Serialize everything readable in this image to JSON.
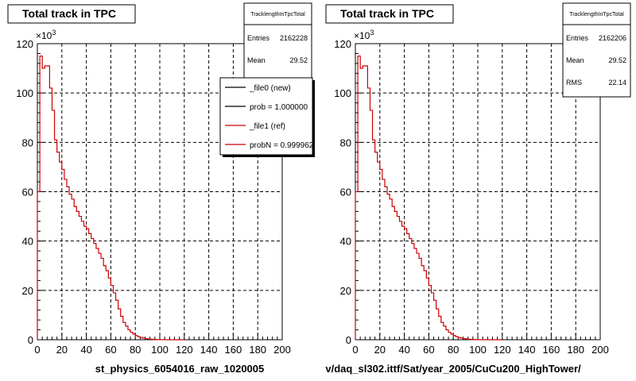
{
  "chart_data": [
    {
      "type": "line",
      "title": "Total track in TPC",
      "xlabel": "st_physics_6054016_raw_1020005",
      "ylabel": "",
      "xlim": [
        0,
        200
      ],
      "ylim": [
        0,
        120
      ],
      "y_multiplier": "×10",
      "y_multiplier_exp": "3",
      "x_ticks": [
        "0",
        "20",
        "40",
        "60",
        "80",
        "100",
        "120",
        "140",
        "160",
        "180",
        "200"
      ],
      "y_ticks": [
        "0",
        "20",
        "40",
        "60",
        "80",
        "100",
        "120"
      ],
      "grid": true,
      "stats": {
        "name": "TracklengthInTpcTotal",
        "rows": [
          {
            "label": "Entries",
            "value": "2162228"
          },
          {
            "label": "Mean",
            "value": "29.52"
          }
        ]
      },
      "legend_placement": "top-right",
      "legend": [
        {
          "label": "_file0 (new)",
          "color": "#000000"
        },
        {
          "label": "prob = 1.000000",
          "color": "#000000"
        },
        {
          "label": "_file1 (ref)",
          "color": "#cc0000"
        },
        {
          "label": "probN = 0.999962",
          "color": "#cc0000"
        }
      ],
      "series": [
        {
          "name": "_file1 (ref)",
          "color": "#cc0000",
          "x": [
            0,
            2,
            4,
            6,
            8,
            10,
            12,
            14,
            16,
            18,
            20,
            22,
            24,
            26,
            28,
            30,
            32,
            34,
            36,
            38,
            40,
            42,
            44,
            46,
            48,
            50,
            52,
            54,
            56,
            58,
            60,
            62,
            64,
            66,
            68,
            70,
            72,
            74,
            76,
            78,
            80,
            82,
            84,
            86,
            88,
            90,
            92,
            94,
            96,
            98,
            100,
            102,
            104,
            106,
            108,
            110,
            112,
            114,
            116,
            118
          ],
          "values": [
            60,
            115,
            110,
            111,
            111,
            102,
            93,
            81,
            76,
            72,
            69,
            65,
            62,
            59,
            57,
            54,
            52,
            50,
            48,
            46,
            45,
            43,
            41,
            39,
            37,
            35,
            33,
            30,
            28,
            25,
            22,
            19,
            16,
            12.5,
            9.5,
            7,
            5.5,
            4,
            3,
            2.3,
            1.7,
            1.2,
            0.9,
            0.65,
            0.45,
            0.3,
            0.2,
            0.12,
            0.08,
            0.05,
            0.03,
            0.02,
            0.01,
            0.01,
            0.01,
            0,
            0,
            0,
            0,
            0
          ]
        }
      ]
    },
    {
      "type": "line",
      "title": "Total track in TPC",
      "xlabel": "v/daq_sl302.ittf/Sat/year_2005/CuCu200_HighTower/",
      "ylabel": "",
      "xlim": [
        0,
        200
      ],
      "ylim": [
        0,
        120
      ],
      "y_multiplier": "×10",
      "y_multiplier_exp": "3",
      "x_ticks": [
        "0",
        "20",
        "40",
        "60",
        "80",
        "100",
        "120",
        "140",
        "160",
        "180",
        "200"
      ],
      "y_ticks": [
        "0",
        "20",
        "40",
        "60",
        "80",
        "100",
        "120"
      ],
      "grid": true,
      "stats": {
        "name": "TracklengthInTpcTotal",
        "rows": [
          {
            "label": "Entries",
            "value": "2162206"
          },
          {
            "label": "Mean",
            "value": "29.52"
          },
          {
            "label": "RMS",
            "value": "22.14"
          }
        ]
      },
      "legend": [],
      "series": [
        {
          "color": "#cc0000",
          "x": [
            0,
            2,
            4,
            6,
            8,
            10,
            12,
            14,
            16,
            18,
            20,
            22,
            24,
            26,
            28,
            30,
            32,
            34,
            36,
            38,
            40,
            42,
            44,
            46,
            48,
            50,
            52,
            54,
            56,
            58,
            60,
            62,
            64,
            66,
            68,
            70,
            72,
            74,
            76,
            78,
            80,
            82,
            84,
            86,
            88,
            90,
            92,
            94,
            96,
            98,
            100,
            102,
            104,
            106,
            108,
            110,
            112,
            114,
            116,
            118
          ],
          "values": [
            60,
            115,
            110,
            111,
            111,
            102,
            93,
            81,
            76,
            72,
            69,
            65,
            62,
            59,
            57,
            54,
            52,
            50,
            48,
            46,
            45,
            43,
            41,
            39,
            37,
            35,
            33,
            30,
            28,
            25,
            22,
            19,
            16,
            12.5,
            9.5,
            7,
            5.5,
            4,
            3,
            2.3,
            1.7,
            1.2,
            0.9,
            0.65,
            0.45,
            0.3,
            0.2,
            0.12,
            0.08,
            0.05,
            0.03,
            0.02,
            0.01,
            0.01,
            0.01,
            0,
            0,
            0,
            0,
            0
          ]
        }
      ]
    }
  ]
}
